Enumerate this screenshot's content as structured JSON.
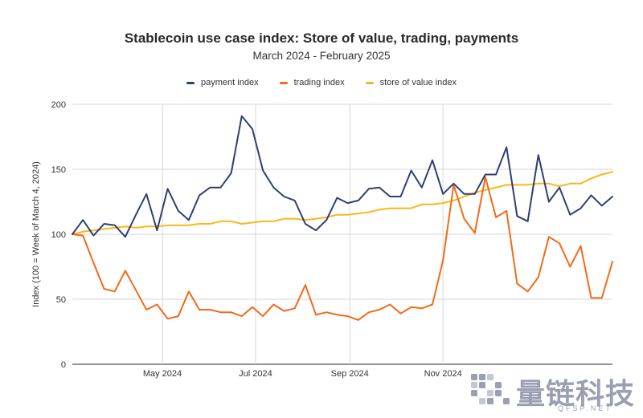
{
  "chart_data": {
    "type": "line",
    "title": "Stablecoin use case index: Store of value, trading, payments",
    "subtitle": "March 2024 - February 2025",
    "ylabel": "Index (100 = Week of March 4, 2024)",
    "xlabel": "",
    "ylim": [
      0,
      200
    ],
    "yticks": [
      0,
      50,
      100,
      150,
      200
    ],
    "weeks": 52,
    "xticks": [
      {
        "label": "May 2024",
        "week": 8.5
      },
      {
        "label": "Jul 2024",
        "week": 17.3
      },
      {
        "label": "Sep 2024",
        "week": 26.2
      },
      {
        "label": "Nov 2024",
        "week": 35.0
      }
    ],
    "grid": true,
    "legend_position": "top",
    "series": [
      {
        "name": "payment index",
        "color": "#2f3f73",
        "values": [
          100,
          111,
          99,
          108,
          107,
          98,
          115,
          131,
          103,
          135,
          118,
          111,
          130,
          136,
          136,
          147,
          191,
          181,
          149,
          136,
          129,
          126,
          108,
          103,
          111,
          128,
          124,
          126,
          135,
          136,
          129,
          129,
          149,
          136,
          157,
          131,
          139,
          131,
          131,
          146,
          146,
          167,
          114,
          110,
          161,
          125,
          136,
          115,
          120,
          130,
          122,
          129
        ]
      },
      {
        "name": "trading index",
        "color": "#f26a1b",
        "values": [
          100,
          99,
          78,
          58,
          56,
          72,
          57,
          42,
          46,
          35,
          37,
          56,
          42,
          42,
          40,
          40,
          37,
          44,
          37,
          46,
          41,
          43,
          61,
          38,
          40,
          38,
          37,
          34,
          40,
          42,
          46,
          39,
          44,
          43,
          46,
          80,
          138,
          112,
          101,
          144,
          113,
          118,
          62,
          56,
          67,
          98,
          93,
          75,
          91,
          51,
          51,
          79
        ]
      },
      {
        "name": "store of value index",
        "color": "#f9b81b",
        "values": [
          100,
          102,
          103,
          104,
          105,
          106,
          105,
          106,
          106,
          107,
          107,
          107,
          108,
          108,
          110,
          110,
          108,
          109,
          110,
          110,
          112,
          112,
          111,
          112,
          113,
          115,
          115,
          116,
          117,
          119,
          120,
          120,
          120,
          123,
          123,
          124,
          126,
          129,
          132,
          134,
          136,
          138,
          138,
          138,
          139,
          139,
          137,
          139,
          139,
          143,
          146,
          148
        ]
      }
    ]
  },
  "watermark": {
    "text": "量链科技",
    "sub": "QFSP.NET"
  }
}
